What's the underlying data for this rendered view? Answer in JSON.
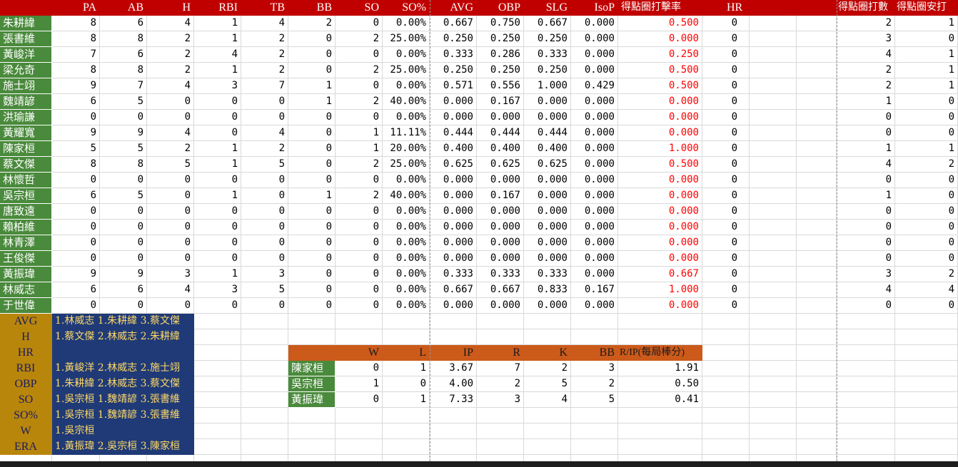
{
  "batting": {
    "headers": [
      "",
      "PA",
      "AB",
      "H",
      "RBI",
      "TB",
      "BB",
      "SO",
      "SO%",
      "AVG",
      "OBP",
      "SLG",
      "IsoP",
      "得點圈打擊率",
      "HR",
      "",
      "",
      "得點圈打數",
      "得點圈安打"
    ],
    "rows": [
      [
        "朱耕緯",
        "8",
        "6",
        "4",
        "1",
        "4",
        "2",
        "0",
        "0.00%",
        "0.667",
        "0.750",
        "0.667",
        "0.000",
        "0.500",
        "0",
        "",
        "",
        "2",
        "1"
      ],
      [
        "張書維",
        "8",
        "8",
        "2",
        "1",
        "2",
        "0",
        "2",
        "25.00%",
        "0.250",
        "0.250",
        "0.250",
        "0.000",
        "0.000",
        "0",
        "",
        "",
        "3",
        "0"
      ],
      [
        "黃峻洋",
        "7",
        "6",
        "2",
        "4",
        "2",
        "0",
        "0",
        "0.00%",
        "0.333",
        "0.286",
        "0.333",
        "0.000",
        "0.250",
        "0",
        "",
        "",
        "4",
        "1"
      ],
      [
        "梁允奇",
        "8",
        "8",
        "2",
        "1",
        "2",
        "0",
        "2",
        "25.00%",
        "0.250",
        "0.250",
        "0.250",
        "0.000",
        "0.500",
        "0",
        "",
        "",
        "2",
        "1"
      ],
      [
        "施士翊",
        "9",
        "7",
        "4",
        "3",
        "7",
        "1",
        "0",
        "0.00%",
        "0.571",
        "0.556",
        "1.000",
        "0.429",
        "0.500",
        "0",
        "",
        "",
        "2",
        "1"
      ],
      [
        "魏靖諺",
        "6",
        "5",
        "0",
        "0",
        "0",
        "1",
        "2",
        "40.00%",
        "0.000",
        "0.167",
        "0.000",
        "0.000",
        "0.000",
        "0",
        "",
        "",
        "1",
        "0"
      ],
      [
        "洪瑜謙",
        "0",
        "0",
        "0",
        "0",
        "0",
        "0",
        "0",
        "0.00%",
        "0.000",
        "0.000",
        "0.000",
        "0.000",
        "0.000",
        "0",
        "",
        "",
        "0",
        "0"
      ],
      [
        "黃耀寬",
        "9",
        "9",
        "4",
        "0",
        "4",
        "0",
        "1",
        "11.11%",
        "0.444",
        "0.444",
        "0.444",
        "0.000",
        "0.000",
        "0",
        "",
        "",
        "0",
        "0"
      ],
      [
        "陳家桓",
        "5",
        "5",
        "2",
        "1",
        "2",
        "0",
        "1",
        "20.00%",
        "0.400",
        "0.400",
        "0.400",
        "0.000",
        "1.000",
        "0",
        "",
        "",
        "1",
        "1"
      ],
      [
        "蔡文傑",
        "8",
        "8",
        "5",
        "1",
        "5",
        "0",
        "2",
        "25.00%",
        "0.625",
        "0.625",
        "0.625",
        "0.000",
        "0.500",
        "0",
        "",
        "",
        "4",
        "2"
      ],
      [
        "林懷哲",
        "0",
        "0",
        "0",
        "0",
        "0",
        "0",
        "0",
        "0.00%",
        "0.000",
        "0.000",
        "0.000",
        "0.000",
        "0.000",
        "0",
        "",
        "",
        "0",
        "0"
      ],
      [
        "吳宗桓",
        "6",
        "5",
        "0",
        "1",
        "0",
        "1",
        "2",
        "40.00%",
        "0.000",
        "0.167",
        "0.000",
        "0.000",
        "0.000",
        "0",
        "",
        "",
        "1",
        "0"
      ],
      [
        "唐致遠",
        "0",
        "0",
        "0",
        "0",
        "0",
        "0",
        "0",
        "0.00%",
        "0.000",
        "0.000",
        "0.000",
        "0.000",
        "0.000",
        "0",
        "",
        "",
        "0",
        "0"
      ],
      [
        "賴柏維",
        "0",
        "0",
        "0",
        "0",
        "0",
        "0",
        "0",
        "0.00%",
        "0.000",
        "0.000",
        "0.000",
        "0.000",
        "0.000",
        "0",
        "",
        "",
        "0",
        "0"
      ],
      [
        "林青澤",
        "0",
        "0",
        "0",
        "0",
        "0",
        "0",
        "0",
        "0.00%",
        "0.000",
        "0.000",
        "0.000",
        "0.000",
        "0.000",
        "0",
        "",
        "",
        "0",
        "0"
      ],
      [
        "王俊傑",
        "0",
        "0",
        "0",
        "0",
        "0",
        "0",
        "0",
        "0.00%",
        "0.000",
        "0.000",
        "0.000",
        "0.000",
        "0.000",
        "0",
        "",
        "",
        "0",
        "0"
      ],
      [
        "黃振瑋",
        "9",
        "9",
        "3",
        "1",
        "3",
        "0",
        "0",
        "0.00%",
        "0.333",
        "0.333",
        "0.333",
        "0.000",
        "0.667",
        "0",
        "",
        "",
        "3",
        "2"
      ],
      [
        "林威志",
        "6",
        "6",
        "4",
        "3",
        "5",
        "0",
        "0",
        "0.00%",
        "0.667",
        "0.667",
        "0.833",
        "0.167",
        "1.000",
        "0",
        "",
        "",
        "4",
        "4"
      ],
      [
        "于世偉",
        "0",
        "0",
        "0",
        "0",
        "0",
        "0",
        "0",
        "0.00%",
        "0.000",
        "0.000",
        "0.000",
        "0.000",
        "0.000",
        "0",
        "",
        "",
        "0",
        "0"
      ]
    ]
  },
  "leaders": [
    {
      "label": "AVG",
      "text": "1.林威志 1.朱耕緯 3.蔡文傑"
    },
    {
      "label": "H",
      "text": "1.蔡文傑 2.林威志 2.朱耕緯"
    },
    {
      "label": "HR",
      "text": ""
    },
    {
      "label": "RBI",
      "text": "1.黃峻洋 2.林威志 2.施士翊"
    },
    {
      "label": "OBP",
      "text": "1.朱耕緯 2.林威志 3.蔡文傑"
    },
    {
      "label": "SO",
      "text": "1.吳宗桓 1.魏靖諺 3.張書維"
    },
    {
      "label": "SO%",
      "text": "1.吳宗桓 1.魏靖諺 3.張書維"
    },
    {
      "label": "W",
      "text": "1.吳宗桓"
    },
    {
      "label": "ERA",
      "text": "1.黃振瑋 2.吳宗桓 3.陳家桓"
    }
  ],
  "pitching": {
    "headers": [
      "",
      "W",
      "L",
      "IP",
      "R",
      "K",
      "BB",
      "R/IP(每局棒分)"
    ],
    "rows": [
      [
        "陳家桓",
        "0",
        "1",
        "3.67",
        "7",
        "2",
        "3",
        "1.91"
      ],
      [
        "吳宗桓",
        "1",
        "0",
        "4.00",
        "2",
        "5",
        "2",
        "0.50"
      ],
      [
        "黃振瑋",
        "0",
        "1",
        "7.33",
        "3",
        "4",
        "5",
        "0.41"
      ]
    ]
  },
  "colors": {
    "header_red": "#c00000",
    "name_green": "#4a8a3c",
    "leader_gold": "#b8860b",
    "leader_navy": "#1f3a77",
    "leader_text": "#ffd966",
    "pitch_orange": "#cc5a1a",
    "risp_red": "#ff0000"
  }
}
